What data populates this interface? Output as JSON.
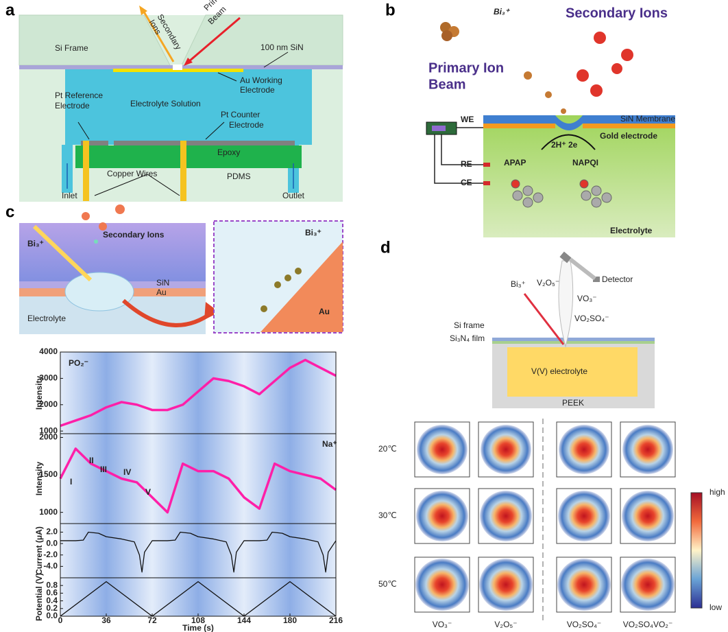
{
  "panel_a": {
    "label": "a",
    "si_frame": "Si Frame",
    "secondary_ions": [
      "Secondary",
      "Ions"
    ],
    "primary_ion_beam": [
      "Primary Ion",
      "Beam"
    ],
    "sin": "100 nm SiN",
    "au_electrode": [
      "Au Working",
      "Electrode"
    ],
    "pt_reference": [
      "Pt Reference",
      "Electrode"
    ],
    "electrolyte": "Electrolyte Solution",
    "pt_counter": [
      "Pt Counter",
      "Electrode"
    ],
    "epoxy": "Epoxy",
    "copper_wires": "Copper Wires",
    "pdms": "PDMS",
    "inlet": "Inlet",
    "outlet": "Outlet"
  },
  "panel_b": {
    "label": "b",
    "bi3": "Bi₃⁺",
    "secondary_ions": "Secondary Ions",
    "primary_ion_beam": [
      "Primary Ion",
      "Beam"
    ],
    "we": "WE",
    "re": "RE",
    "ce": "CE",
    "membrane": "SiN Membrane",
    "gold": "Gold electrode",
    "reaction": "2H⁺ 2e",
    "apap": "APAP",
    "napqi": "NAPQI",
    "electrolyte": "Electrolyte"
  },
  "panel_c": {
    "label": "c",
    "bi3": "Bi₃⁺",
    "secondary_ions": "Secondary Ions",
    "sin": "SiN",
    "au": "Au",
    "electrolyte": "Electrolyte",
    "inset_bi3": "Bi₃⁺",
    "inset_au": "Au"
  },
  "panel_d": {
    "label": "d",
    "bi3": "Bi₃⁺",
    "v2o5": "V₂O₅⁻",
    "vo3": "VO₃⁻",
    "vo2so4": "VO₂SO₄⁻",
    "detector": "Detector",
    "si_frame": "Si frame",
    "si3n4": "Si₃N₄ film",
    "electrolyte": "V(V) electrolyte",
    "peek": "PEEK",
    "rows": [
      "20℃",
      "30℃",
      "50℃"
    ],
    "columns": [
      "VO₃⁻",
      "V₂O₅⁻",
      "VO₂SO₄⁻",
      "VO₂SO₄VO₂⁻"
    ],
    "colorbar": [
      "high",
      "low"
    ]
  },
  "chart_data": [
    {
      "type": "line",
      "annotations": [
        "PO₂⁻"
      ],
      "ylabel": "Intensity",
      "color": "#ff1fa8",
      "xlim": [
        0,
        216
      ],
      "ylim": [
        900,
        4000
      ],
      "yticks": [
        1000,
        2000,
        3000,
        4000
      ],
      "x": [
        0,
        12,
        24,
        36,
        48,
        60,
        72,
        84,
        96,
        108,
        120,
        132,
        144,
        156,
        168,
        180,
        192,
        204,
        216
      ],
      "values": [
        1200,
        1400,
        1600,
        1900,
        2100,
        2000,
        1800,
        1800,
        2000,
        2500,
        3000,
        2900,
        2700,
        2400,
        2900,
        3400,
        3700,
        3400,
        3100
      ]
    },
    {
      "type": "line",
      "annotations": [
        "Na⁺",
        "I",
        "II",
        "III",
        "IV",
        "V"
      ],
      "ylabel": "Intensity",
      "color": "#ff1fa8",
      "xlim": [
        0,
        216
      ],
      "ylim": [
        850,
        2050
      ],
      "yticks": [
        1000,
        1500,
        2000
      ],
      "x": [
        0,
        12,
        24,
        36,
        48,
        60,
        72,
        84,
        96,
        108,
        120,
        132,
        144,
        156,
        168,
        180,
        192,
        204,
        216
      ],
      "values": [
        1450,
        1850,
        1650,
        1550,
        1450,
        1400,
        1200,
        1000,
        1650,
        1550,
        1550,
        1450,
        1200,
        1050,
        1650,
        1550,
        1500,
        1450,
        1300
      ]
    },
    {
      "type": "line",
      "annotations": [],
      "ylabel": "Current (μA)",
      "color": "#111111",
      "xlim": [
        0,
        216
      ],
      "ylim": [
        -6,
        3.5
      ],
      "yticks": [
        {
          "value": 2,
          "label": "2.0"
        },
        {
          "value": 0,
          "label": "0.0"
        },
        {
          "value": -2,
          "label": "-2.0"
        },
        {
          "value": -4,
          "label": "-4.0"
        }
      ],
      "x": [
        0,
        12,
        18,
        22,
        30,
        36,
        48,
        58,
        62,
        64,
        66,
        72,
        84,
        90,
        94,
        102,
        108,
        120,
        130,
        134,
        136,
        138,
        144,
        156,
        162,
        166,
        174,
        180,
        192,
        202,
        206,
        208,
        210,
        216
      ],
      "values": [
        0.5,
        0.5,
        0.6,
        2.0,
        1.8,
        1.2,
        0.8,
        0.3,
        -2.0,
        -5.0,
        -1.5,
        0.5,
        0.5,
        0.6,
        2.0,
        1.8,
        1.2,
        0.8,
        0.3,
        -2.0,
        -5.0,
        -1.5,
        0.5,
        0.5,
        0.6,
        2.0,
        1.8,
        1.2,
        0.8,
        0.3,
        -2.0,
        -5.0,
        -1.5,
        0.5
      ]
    },
    {
      "type": "line",
      "annotations": [],
      "ylabel": "Potential (V)",
      "xlabel": "Time (s)",
      "color": "#111111",
      "xlim": [
        0,
        216
      ],
      "ylim": [
        0,
        1.0
      ],
      "yticks": [
        {
          "value": 0,
          "label": "0.0"
        },
        {
          "value": 0.2,
          "label": "0.2"
        },
        {
          "value": 0.4,
          "label": "0.4"
        },
        {
          "value": 0.6,
          "label": "0.6"
        },
        {
          "value": 0.8,
          "label": "0.8"
        }
      ],
      "xticks": [
        0,
        36,
        72,
        108,
        144,
        180,
        216
      ],
      "x": [
        0,
        36,
        72,
        108,
        144,
        180,
        216
      ],
      "values": [
        0,
        0.9,
        0,
        0.9,
        0,
        0.9,
        0
      ]
    }
  ]
}
